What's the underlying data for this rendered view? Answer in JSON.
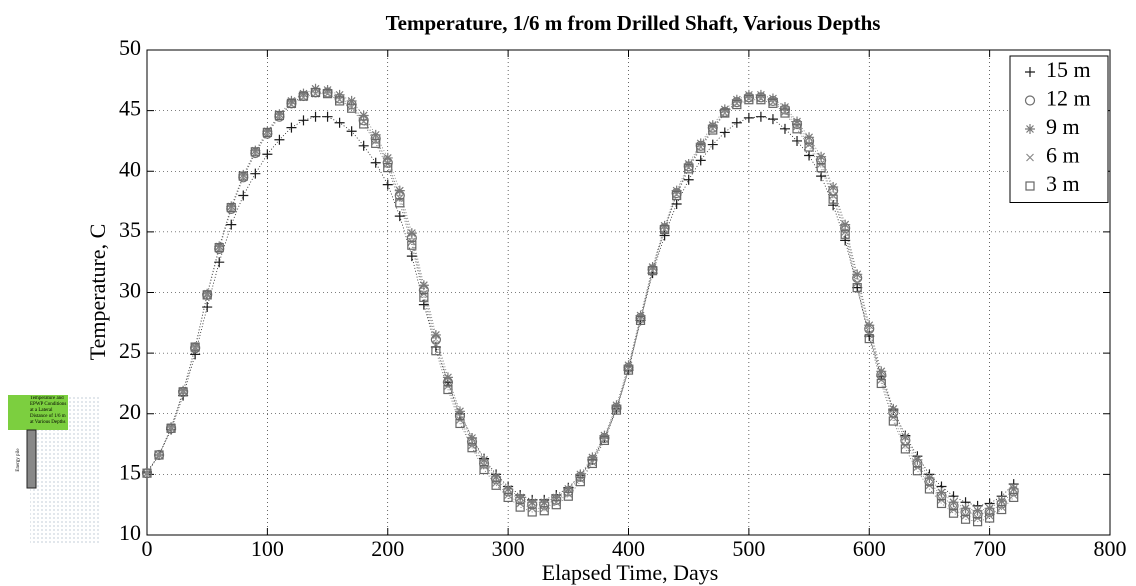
{
  "chart_data": {
    "type": "line",
    "title": "Temperature, 1/6 m from Drilled Shaft, Various Depths",
    "xlabel": "Elapsed Time, Days",
    "ylabel": "Temperature, C",
    "x": [
      0,
      10,
      20,
      30,
      40,
      50,
      60,
      70,
      80,
      90,
      100,
      110,
      120,
      130,
      140,
      150,
      160,
      170,
      180,
      190,
      200,
      210,
      220,
      230,
      240,
      250,
      260,
      270,
      280,
      290,
      300,
      310,
      320,
      330,
      340,
      350,
      360,
      370,
      380,
      390,
      400,
      410,
      420,
      430,
      440,
      450,
      460,
      470,
      480,
      490,
      500,
      510,
      520,
      530,
      540,
      550,
      560,
      570,
      580,
      590,
      600,
      610,
      620,
      630,
      640,
      650,
      660,
      670,
      680,
      690,
      700,
      710,
      720
    ],
    "series": [
      {
        "name": "15 m",
        "color": "#1a1a1a",
        "marker": "plus",
        "values": [
          15.2,
          16.6,
          18.7,
          21.5,
          24.9,
          28.8,
          32.5,
          35.6,
          38.0,
          39.8,
          41.4,
          42.6,
          43.6,
          44.2,
          44.5,
          44.5,
          44.0,
          43.3,
          42.1,
          40.7,
          38.9,
          36.3,
          33.0,
          29.0,
          25.5,
          22.6,
          20.0,
          18.0,
          16.3,
          15.0,
          14.0,
          13.3,
          12.9,
          12.9,
          13.3,
          13.9,
          14.9,
          16.2,
          18.0,
          20.4,
          23.6,
          27.7,
          31.6,
          34.7,
          37.3,
          39.3,
          40.9,
          42.2,
          43.2,
          44.0,
          44.4,
          44.5,
          44.3,
          43.5,
          42.5,
          41.3,
          39.6,
          37.2,
          34.3,
          30.4,
          26.4,
          23.1,
          20.3,
          18.2,
          16.5,
          15.0,
          14.0,
          13.2,
          12.7,
          12.4,
          12.6,
          13.2,
          14.2
        ]
      },
      {
        "name": "12 m",
        "color": "#6e6e6e",
        "marker": "circle",
        "values": [
          15.1,
          16.6,
          18.8,
          21.8,
          25.4,
          29.8,
          33.6,
          36.9,
          39.5,
          41.5,
          43.1,
          44.5,
          45.6,
          46.2,
          46.5,
          46.5,
          46.0,
          45.5,
          44.2,
          42.7,
          40.7,
          38.0,
          34.5,
          30.2,
          26.1,
          22.6,
          19.8,
          17.7,
          15.9,
          14.6,
          13.6,
          12.9,
          12.5,
          12.5,
          12.9,
          13.6,
          14.8,
          16.2,
          18.0,
          20.5,
          23.8,
          27.9,
          31.9,
          35.3,
          38.2,
          40.4,
          42.1,
          43.6,
          44.9,
          45.7,
          46.1,
          46.1,
          45.8,
          45.1,
          43.9,
          42.5,
          40.9,
          38.4,
          35.3,
          31.2,
          27.0,
          23.2,
          20.1,
          17.8,
          15.9,
          14.4,
          13.2,
          12.4,
          11.9,
          11.7,
          11.9,
          12.6,
          13.6
        ]
      },
      {
        "name": "9 m",
        "color": "#7a7a7a",
        "marker": "star",
        "values": [
          15.1,
          16.6,
          18.9,
          21.9,
          25.5,
          29.9,
          33.8,
          37.1,
          39.7,
          41.7,
          43.3,
          44.7,
          45.8,
          46.4,
          46.8,
          46.7,
          46.3,
          45.8,
          44.6,
          43.0,
          41.1,
          38.4,
          34.9,
          30.6,
          26.5,
          23.0,
          20.2,
          18.0,
          16.2,
          14.8,
          13.8,
          13.1,
          12.7,
          12.7,
          13.1,
          13.8,
          15.0,
          16.4,
          18.2,
          20.7,
          24.0,
          28.1,
          32.1,
          35.5,
          38.4,
          40.6,
          42.3,
          43.8,
          45.1,
          45.9,
          46.3,
          46.3,
          46.0,
          45.3,
          44.1,
          42.8,
          41.2,
          38.7,
          35.6,
          31.5,
          27.3,
          23.5,
          20.4,
          18.1,
          16.2,
          14.7,
          13.5,
          12.7,
          12.2,
          12.0,
          12.2,
          12.8,
          13.8
        ]
      },
      {
        "name": "6 m",
        "color": "#8a8a8a",
        "marker": "cross",
        "values": [
          15.1,
          16.6,
          18.8,
          21.8,
          25.4,
          29.8,
          33.6,
          36.9,
          39.5,
          41.5,
          43.1,
          44.5,
          45.5,
          46.1,
          46.4,
          46.4,
          45.9,
          45.3,
          44.1,
          42.5,
          40.6,
          37.8,
          34.2,
          29.9,
          25.7,
          22.3,
          19.5,
          17.4,
          15.7,
          14.3,
          13.3,
          12.6,
          12.2,
          12.2,
          12.7,
          13.4,
          14.6,
          16.0,
          17.9,
          20.4,
          23.7,
          27.8,
          31.8,
          35.2,
          38.1,
          40.3,
          42.0,
          43.5,
          44.8,
          45.6,
          46.0,
          46.0,
          45.7,
          44.9,
          43.7,
          42.2,
          40.6,
          38.0,
          35.0,
          30.8,
          26.6,
          22.8,
          19.7,
          17.4,
          15.6,
          14.1,
          12.9,
          12.1,
          11.6,
          11.4,
          11.6,
          12.3,
          13.3
        ]
      },
      {
        "name": "3 m",
        "color": "#666666",
        "marker": "square",
        "values": [
          15.1,
          16.6,
          18.8,
          21.8,
          25.5,
          29.8,
          33.7,
          37.0,
          39.6,
          41.6,
          43.2,
          44.6,
          45.6,
          46.2,
          46.5,
          46.4,
          45.8,
          45.2,
          43.9,
          42.3,
          40.3,
          37.4,
          33.9,
          29.6,
          25.2,
          22.0,
          19.2,
          17.2,
          15.4,
          14.1,
          13.1,
          12.3,
          11.9,
          12.0,
          12.5,
          13.2,
          14.4,
          15.9,
          17.8,
          20.3,
          23.6,
          27.7,
          31.8,
          35.2,
          38.0,
          40.2,
          41.9,
          43.4,
          44.8,
          45.5,
          45.9,
          45.9,
          45.6,
          44.8,
          43.5,
          42.0,
          40.3,
          37.7,
          34.8,
          30.4,
          26.2,
          22.5,
          19.4,
          17.1,
          15.3,
          13.8,
          12.6,
          11.8,
          11.3,
          11.1,
          11.4,
          12.1,
          13.1
        ]
      }
    ],
    "xlim": [
      0,
      800
    ],
    "xticks": [
      0,
      100,
      200,
      300,
      400,
      500,
      600,
      700,
      800
    ],
    "ylim": [
      10,
      50
    ],
    "yticks": [
      10,
      15,
      20,
      25,
      30,
      35,
      40,
      45,
      50
    ],
    "grid": true,
    "legend": "top-right"
  },
  "inset": {
    "title": "Temperature and EPWP Conditions at a Lateral Distance of 1/6 m at Various Depths",
    "pile_label": "Energy pile"
  }
}
